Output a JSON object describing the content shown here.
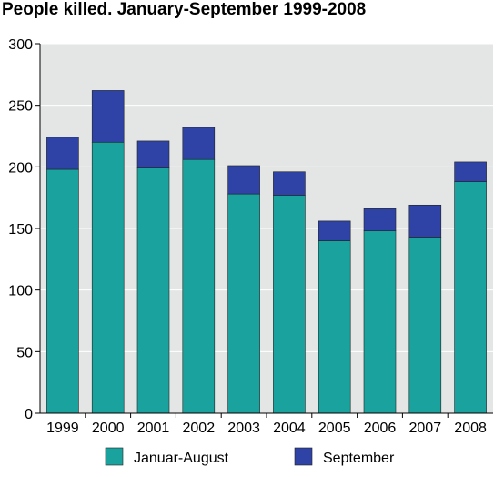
{
  "chart_data": {
    "type": "bar",
    "stacked": true,
    "title": "People killed. January-September 1999-2008",
    "xlabel": "",
    "ylabel": "",
    "categories": [
      "1999",
      "2000",
      "2001",
      "2002",
      "2003",
      "2004",
      "2005",
      "2006",
      "2007",
      "2008"
    ],
    "series": [
      {
        "name": "Januar-August",
        "color": "#1aa39e",
        "values": [
          198,
          220,
          199,
          206,
          178,
          177,
          140,
          148,
          143,
          188
        ]
      },
      {
        "name": "September",
        "color": "#2e43a5",
        "values": [
          26,
          42,
          22,
          26,
          23,
          19,
          16,
          18,
          26,
          16
        ]
      }
    ],
    "ylim": [
      0,
      300
    ],
    "yticks": [
      0,
      50,
      100,
      150,
      200,
      250,
      300
    ],
    "grid": true,
    "legend": "bottom"
  }
}
